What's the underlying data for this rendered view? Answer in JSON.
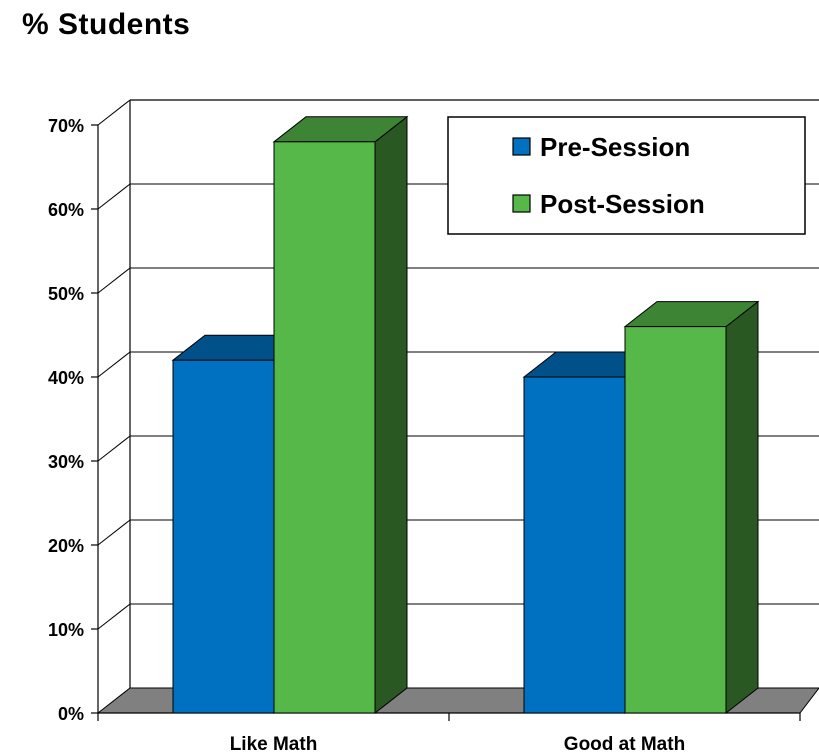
{
  "chart_data": {
    "type": "bar",
    "title": "% Students",
    "xlabel": "",
    "ylabel": "",
    "categories": [
      "Like Math",
      "Good at Math"
    ],
    "series": [
      {
        "name": "Pre-Session",
        "values": [
          42,
          40
        ],
        "color": "#0070C0"
      },
      {
        "name": "Post-Session",
        "values": [
          68,
          46
        ],
        "color": "#55B848"
      }
    ],
    "ylim": [
      0,
      70
    ],
    "yticks": [
      "0%",
      "10%",
      "20%",
      "30%",
      "40%",
      "50%",
      "60%",
      "70%"
    ],
    "grid": true,
    "legend_position": "top-right",
    "style": "3d"
  }
}
